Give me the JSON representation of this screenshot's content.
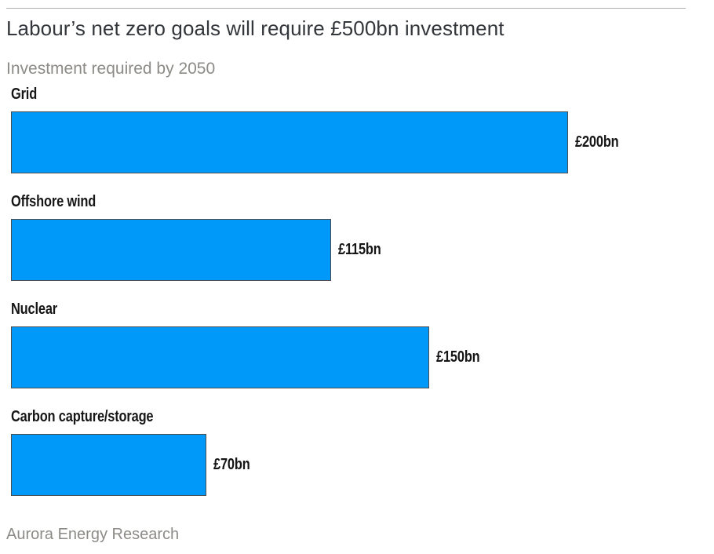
{
  "chart_data": {
    "type": "bar",
    "orientation": "horizontal",
    "title": "Labour’s net zero goals will require £500bn investment",
    "subtitle": "Investment required by 2050",
    "categories": [
      "Grid",
      "Offshore wind",
      "Nuclear",
      "Carbon capture/storage"
    ],
    "values": [
      200,
      115,
      150,
      70
    ],
    "value_labels": [
      "£200bn",
      "£115bn",
      "£150bn",
      "£70bn"
    ],
    "unit": "£bn",
    "xlim": [
      0,
      200
    ],
    "grid": false,
    "legend": false,
    "value_label_position": "right-of-bar",
    "bar_color": "#0099fa",
    "bar_border_color": "#4e4e4e",
    "source": "Aurora Energy Research"
  }
}
